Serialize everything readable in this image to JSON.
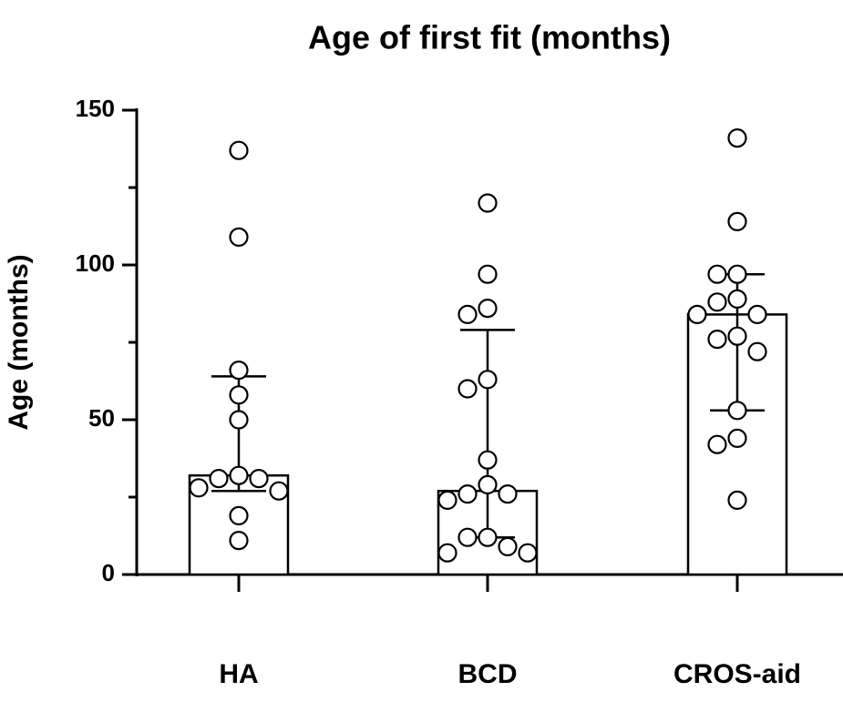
{
  "chart_data": {
    "type": "bar",
    "title": "Age of first fit (months)",
    "y_label": "Age (months)",
    "categories": [
      "HA",
      "BCD",
      "CROS-aid"
    ],
    "values": [
      32,
      27,
      84
    ],
    "error_low": [
      27,
      12,
      53
    ],
    "error_high": [
      64,
      79,
      97
    ],
    "points": [
      [
        137,
        109,
        66,
        58,
        50,
        32,
        31,
        31,
        28,
        27,
        19,
        11
      ],
      [
        120,
        97,
        86,
        84,
        63,
        60,
        37,
        29,
        26,
        26,
        24,
        12,
        12,
        9,
        7,
        7
      ],
      [
        141,
        114,
        97,
        97,
        89,
        88,
        84,
        84,
        77,
        76,
        72,
        53,
        44,
        42,
        24
      ]
    ],
    "bar_color": "#ffffff",
    "edge_color": "#000000",
    "ylim": [
      0,
      150
    ],
    "yticks": [
      0,
      50,
      100,
      150
    ],
    "yminor_ticks": [
      25,
      75,
      125
    ],
    "grid": false
  }
}
